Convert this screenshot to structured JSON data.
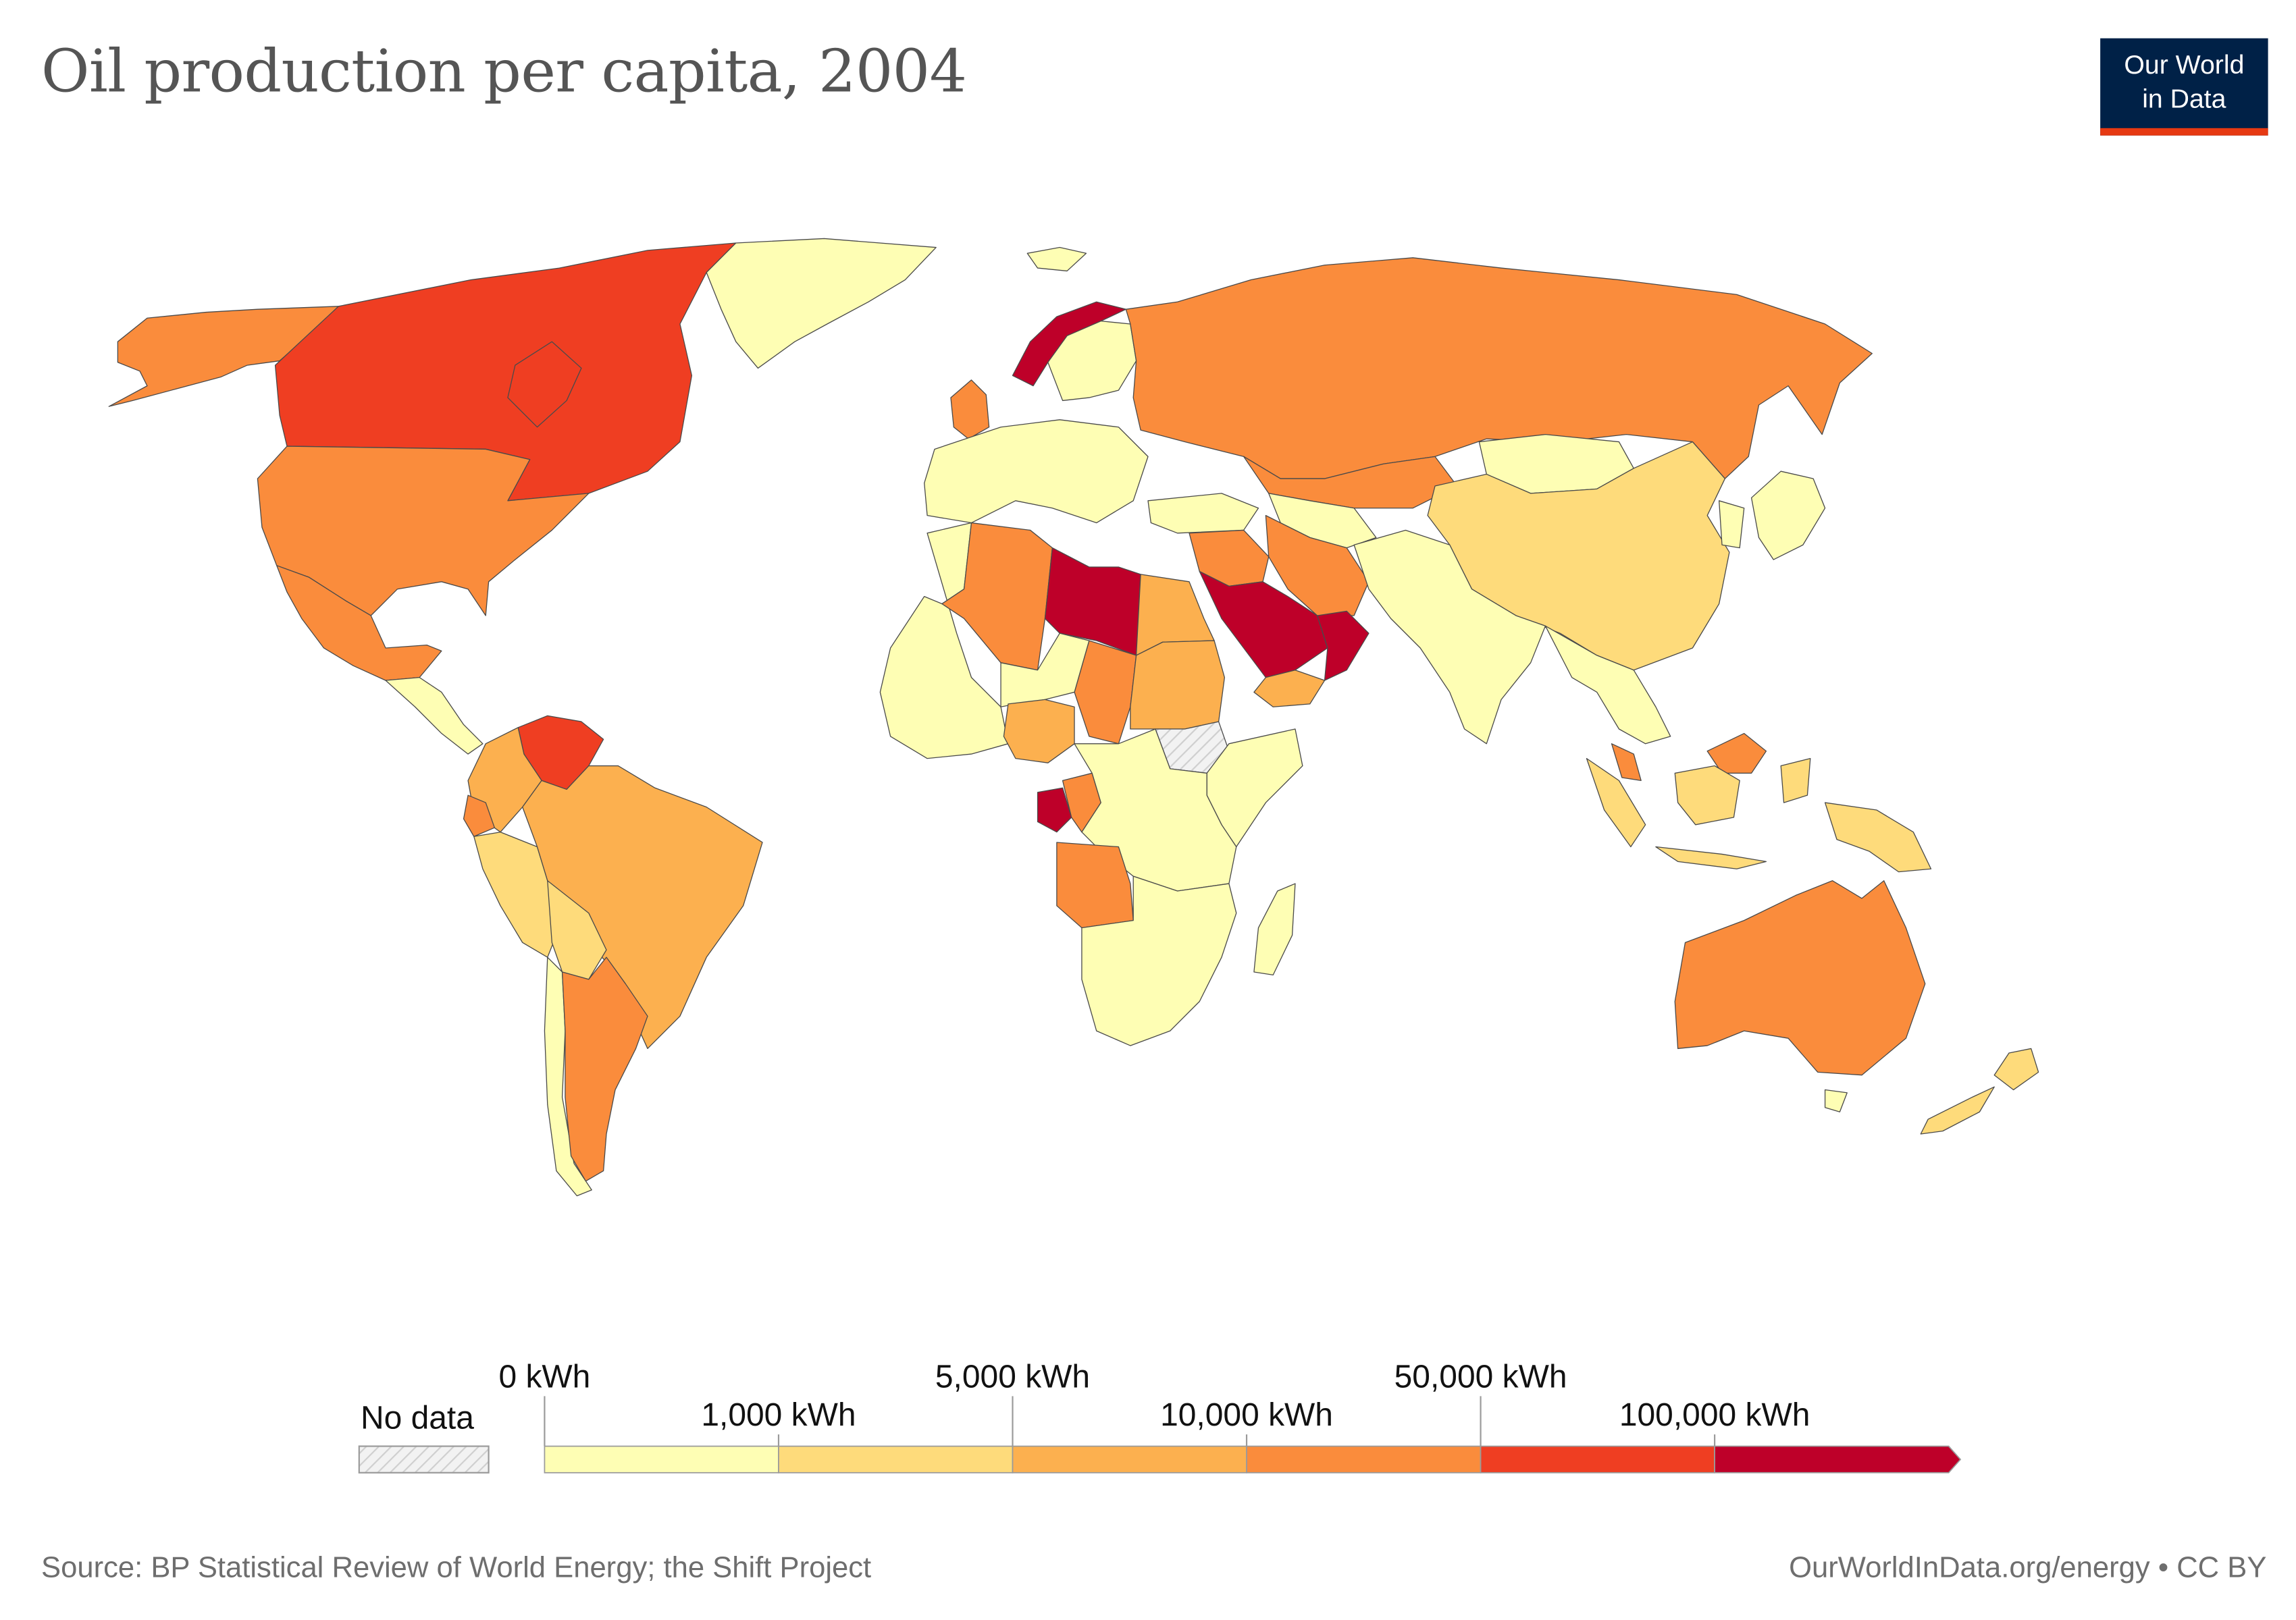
{
  "title": "Oil production per capita, 2004",
  "logo": {
    "line1": "Our World",
    "line2": "in Data"
  },
  "legend": {
    "no_data_label": "No data",
    "bins": [
      {
        "from_label": "0 kWh",
        "color": "#fefeb4"
      },
      {
        "from_label": "1,000 kWh",
        "color": "#fedb7b"
      },
      {
        "from_label": "5,000 kWh",
        "color": "#fcb04f"
      },
      {
        "from_label": "10,000 kWh",
        "color": "#fa8c3c"
      },
      {
        "from_label": "50,000 kWh",
        "color": "#ef3e22"
      },
      {
        "from_label": "100,000 kWh",
        "color": "#be0029"
      }
    ]
  },
  "colors": {
    "bin0": "#fefeb4",
    "bin1": "#fedb7b",
    "bin2": "#fcb04f",
    "bin3": "#fa8c3c",
    "bin4": "#ef3e22",
    "bin5": "#be0029",
    "no_data": "#e6e6e6"
  },
  "regions": [
    {
      "name": "Canada",
      "bin": 4
    },
    {
      "name": "United States",
      "bin": 3
    },
    {
      "name": "Alaska (US)",
      "bin": 3
    },
    {
      "name": "Mexico",
      "bin": 3
    },
    {
      "name": "Greenland",
      "bin": 0
    },
    {
      "name": "Venezuela",
      "bin": 4
    },
    {
      "name": "Brazil",
      "bin": 2
    },
    {
      "name": "Argentina",
      "bin": 3
    },
    {
      "name": "Colombia",
      "bin": 2
    },
    {
      "name": "Ecuador",
      "bin": 3
    },
    {
      "name": "Peru",
      "bin": 1
    },
    {
      "name": "Bolivia",
      "bin": 1
    },
    {
      "name": "Chile",
      "bin": 0
    },
    {
      "name": "Norway",
      "bin": 5
    },
    {
      "name": "United Kingdom",
      "bin": 3
    },
    {
      "name": "Russia",
      "bin": 3
    },
    {
      "name": "Kazakhstan",
      "bin": 3
    },
    {
      "name": "Saudi Arabia",
      "bin": 5
    },
    {
      "name": "Oman",
      "bin": 5
    },
    {
      "name": "Iran",
      "bin": 3
    },
    {
      "name": "Iraq",
      "bin": 3
    },
    {
      "name": "Yemen",
      "bin": 2
    },
    {
      "name": "Libya",
      "bin": 5
    },
    {
      "name": "Algeria",
      "bin": 3
    },
    {
      "name": "Egypt",
      "bin": 2
    },
    {
      "name": "Sudan",
      "bin": 2
    },
    {
      "name": "Chad",
      "bin": 3
    },
    {
      "name": "Nigeria",
      "bin": 2
    },
    {
      "name": "Gabon",
      "bin": 5
    },
    {
      "name": "Congo",
      "bin": 3
    },
    {
      "name": "Angola",
      "bin": 3
    },
    {
      "name": "Ethiopia",
      "bin": -1
    },
    {
      "name": "China",
      "bin": 1
    },
    {
      "name": "Mongolia",
      "bin": 0
    },
    {
      "name": "India",
      "bin": 0
    },
    {
      "name": "Indonesia",
      "bin": 1
    },
    {
      "name": "Malaysia",
      "bin": 3
    },
    {
      "name": "Australia",
      "bin": 3
    },
    {
      "name": "New Zealand",
      "bin": 1
    },
    {
      "name": "Papua New Guinea",
      "bin": 1
    }
  ],
  "footer": {
    "source": "Source: BP Statistical Review of World Energy; the Shift Project",
    "credit": "OurWorldInData.org/energy • CC BY"
  }
}
